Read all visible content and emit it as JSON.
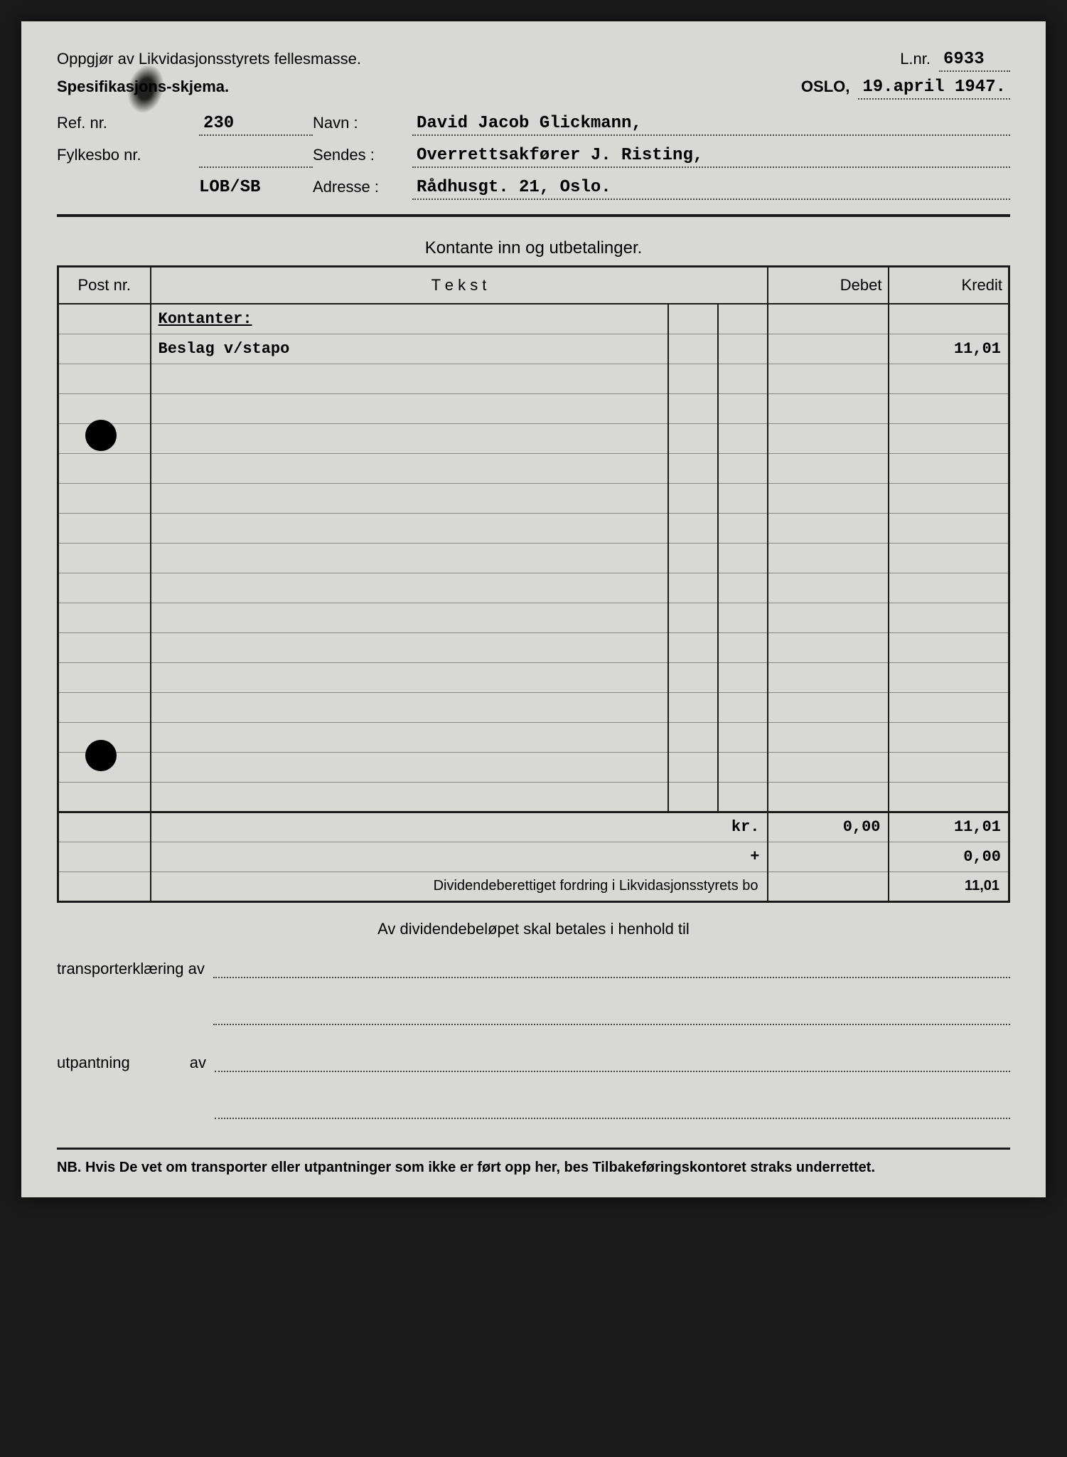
{
  "header": {
    "title_line1": "Oppgjør av Likvidasjonsstyrets fellesmasse.",
    "title_line2": "Spesifikasjons-skjema.",
    "lnr_label": "L.nr.",
    "lnr_value": "6933",
    "city": "OSLO,",
    "date": "19.april 1947."
  },
  "fields": {
    "ref_label": "Ref. nr.",
    "ref_value": "230",
    "navn_label": "Navn :",
    "navn_value": "David Jacob Glickmann,",
    "fylkesbo_label": "Fylkesbo nr.",
    "fylkesbo_value": "",
    "sendes_label": "Sendes :",
    "sendes_value": "Overrettsakfører J. Risting,",
    "code": "LOB/SB",
    "adresse_label": "Adresse :",
    "adresse_value": "Rådhusgt. 21, Oslo."
  },
  "section_title": "Kontante inn og utbetalinger.",
  "table": {
    "headers": {
      "post": "Post nr.",
      "tekst": "T e k s t",
      "debet": "Debet",
      "kredit": "Kredit"
    },
    "rows": [
      {
        "post": "",
        "tekst_underlined": "Kontanter:",
        "debet": "",
        "kredit": ""
      },
      {
        "post": "",
        "tekst": "Beslag v/stapo",
        "debet": "",
        "kredit": "11,01"
      }
    ],
    "blank_rows": 15,
    "totals": {
      "label": "kr.",
      "debet": "0,00",
      "kredit": "11,01",
      "plus": "+",
      "plus_kredit": "0,00"
    },
    "dividend_label": "Dividendeberettiget fordring i Likvidasjonsstyrets bo",
    "dividend_value": "11,01"
  },
  "footer": {
    "center_text": "Av dividendebeløpet skal betales i henhold til",
    "transport_label": "transporterklæring av",
    "utpantning_label": "utpantning",
    "av_label": "av",
    "nb_text": "NB. Hvis De vet om transporter eller utpantninger som ikke er ført opp her, bes Tilbakeføringskontoret straks underrettet."
  },
  "colors": {
    "page_bg": "#d8d8d4",
    "border": "#1a1a1a",
    "rule": "#888"
  }
}
